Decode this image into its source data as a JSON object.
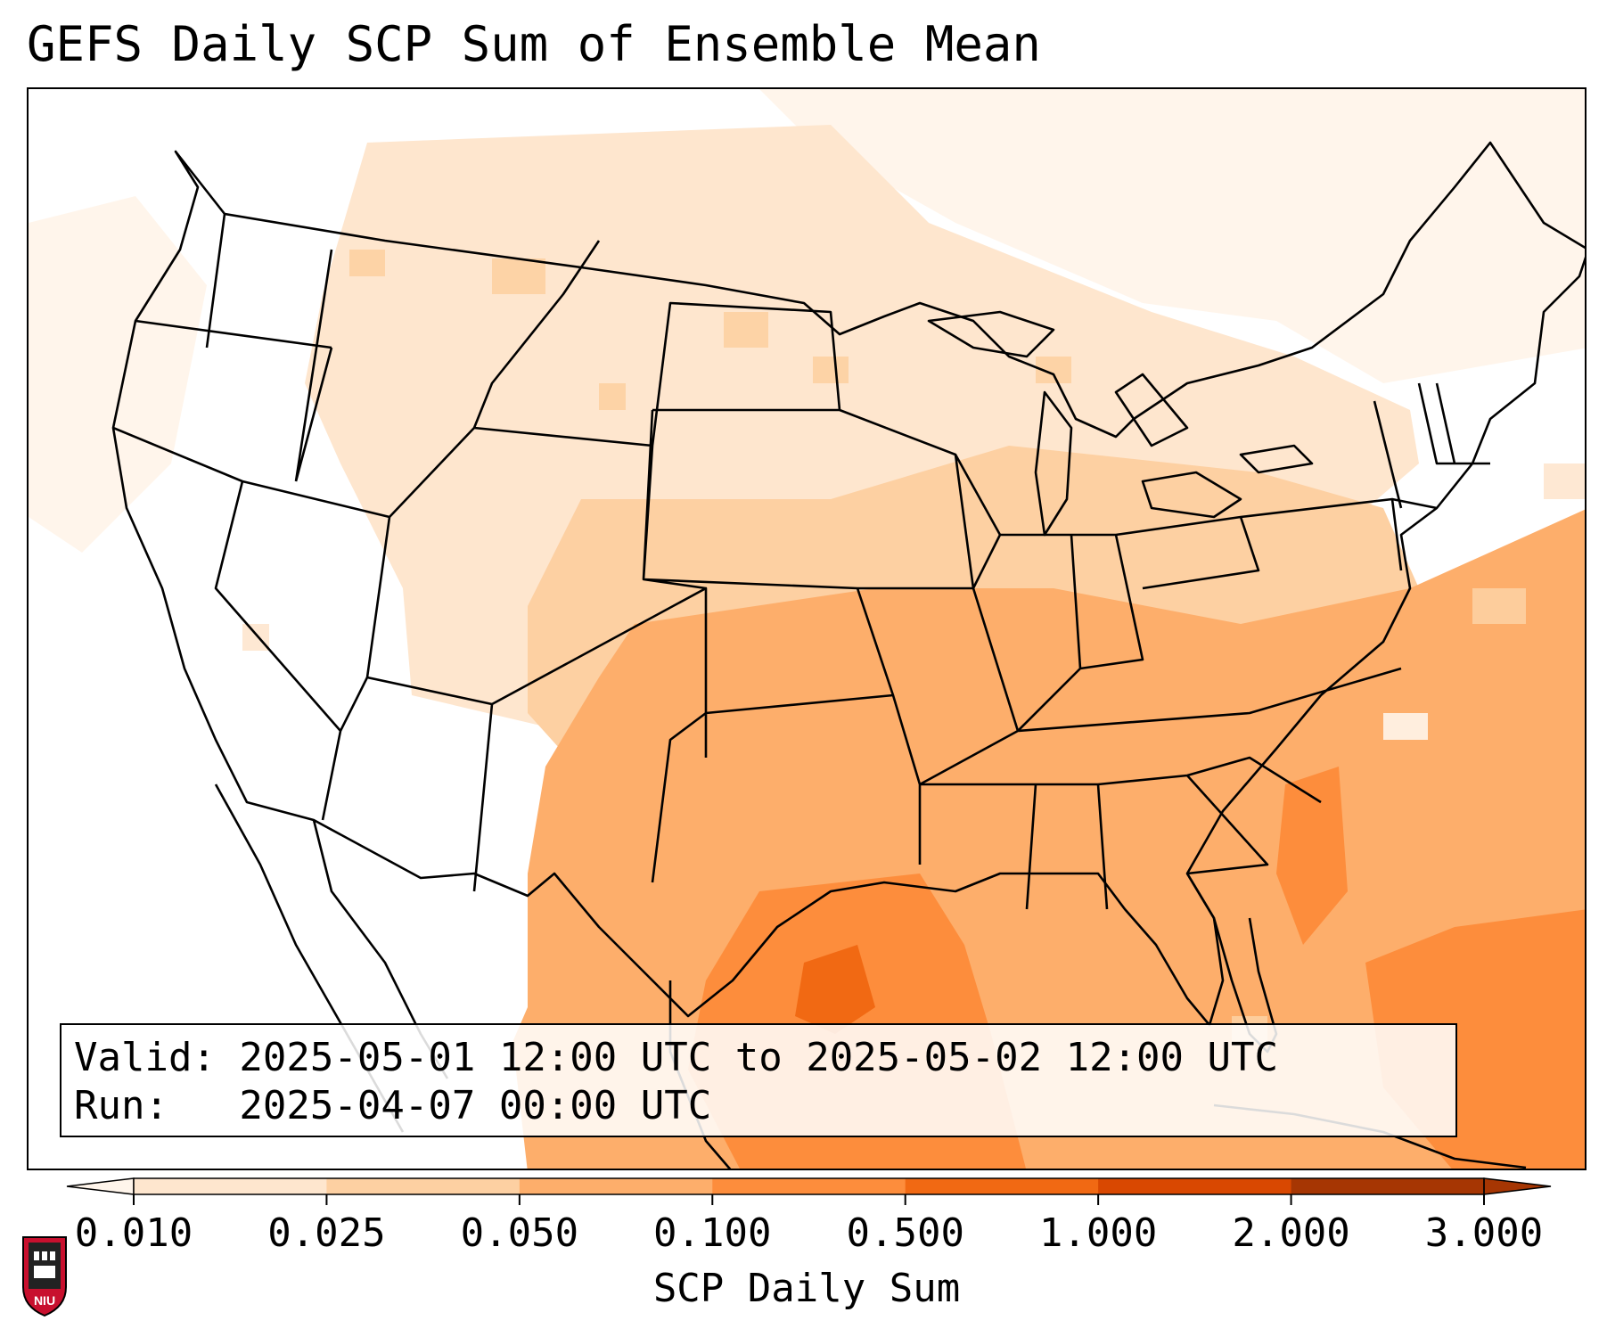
{
  "title": "GEFS Daily SCP Sum of Ensemble Mean",
  "info": {
    "valid": "Valid: 2025-05-01 12:00 UTC to 2025-05-02 12:00 UTC",
    "run": "Run:   2025-04-07 00:00 UTC"
  },
  "colorbar": {
    "label": "SCP Daily Sum",
    "ticks": [
      "0.010",
      "0.025",
      "0.050",
      "0.100",
      "0.500",
      "1.000",
      "2.000",
      "3.000"
    ],
    "colors": [
      "#fff5eb",
      "#fee6ce",
      "#fdd0a2",
      "#fdae6b",
      "#fd8d3c",
      "#f16913",
      "#d94801",
      "#a63603"
    ],
    "extend": "both"
  },
  "map": {
    "region": "Continental United States",
    "palette": {
      "lowest": "#fff5eb",
      "low": "#fee6ce",
      "moderate": "#fdd0a2",
      "elevated": "#fdae6b",
      "high": "#fd8d3c",
      "highest": "#f16913"
    },
    "borders_color": "#000000"
  },
  "logo": {
    "text": "NIU",
    "colors": {
      "shield": "#c8102e",
      "building": "#222222"
    }
  }
}
